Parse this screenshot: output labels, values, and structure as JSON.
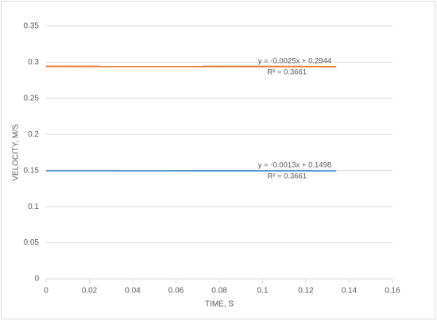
{
  "chart_data": {
    "type": "line",
    "x_label": "TIME, S",
    "y_label": "VELOCITY, M/S",
    "xlim": [
      0,
      0.16
    ],
    "xticks": [
      0,
      0.02,
      0.04,
      0.06,
      0.08,
      0.1,
      0.12,
      0.14,
      0.16
    ],
    "ylim": [
      0,
      0.35
    ],
    "yticks": [
      0,
      0.05,
      0.1,
      0.15,
      0.2,
      0.25,
      0.3,
      0.35
    ],
    "grid": true,
    "series": [
      {
        "color": "#ed7d31",
        "x": [
          0,
          0.134
        ],
        "values": [
          0.2944,
          0.2941
        ],
        "equation": "y = -0.0025x + 0.2944",
        "r_squared": "R² = 0.3661"
      },
      {
        "color": "#5b9bd5",
        "x": [
          0,
          0.134
        ],
        "values": [
          0.1498,
          0.1496
        ],
        "equation": "y = -0.0013x + 0.1498",
        "r_squared": "R² = 0.3661"
      }
    ]
  }
}
